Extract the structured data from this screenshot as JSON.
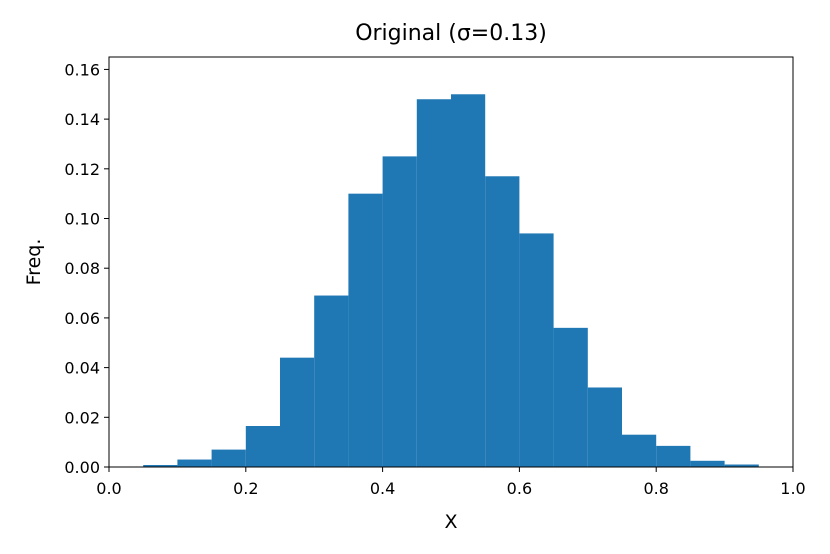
{
  "chart_data": {
    "type": "histogram",
    "title": "Original (σ=0.13)",
    "x_label": "X",
    "y_label": "Freq.",
    "bins": [
      0.05,
      0.1,
      0.15,
      0.2,
      0.25,
      0.3,
      0.35,
      0.4,
      0.45,
      0.5,
      0.55,
      0.6,
      0.65,
      0.7,
      0.75,
      0.8,
      0.85,
      0.9,
      0.95
    ],
    "values": [
      0.0008,
      0.003,
      0.007,
      0.0165,
      0.044,
      0.069,
      0.11,
      0.125,
      0.148,
      0.15,
      0.117,
      0.094,
      0.056,
      0.032,
      0.013,
      0.0085,
      0.0025,
      0.001
    ],
    "color": "#1f77b4",
    "xlim": [
      0,
      1
    ],
    "xticks": [
      {
        "value": 0,
        "label": "0.0"
      },
      0.2,
      0.4,
      0.6,
      0.8,
      {
        "value": 1,
        "label": "1.0"
      }
    ],
    "ylim": [
      0,
      0.165
    ],
    "yticks": [
      {
        "value": 0,
        "label": "0.00"
      },
      0.02,
      0.04,
      0.06,
      0.08,
      {
        "value": 0.1,
        "label": "0.10"
      },
      0.12,
      0.14,
      0.16
    ],
    "grid": false
  }
}
